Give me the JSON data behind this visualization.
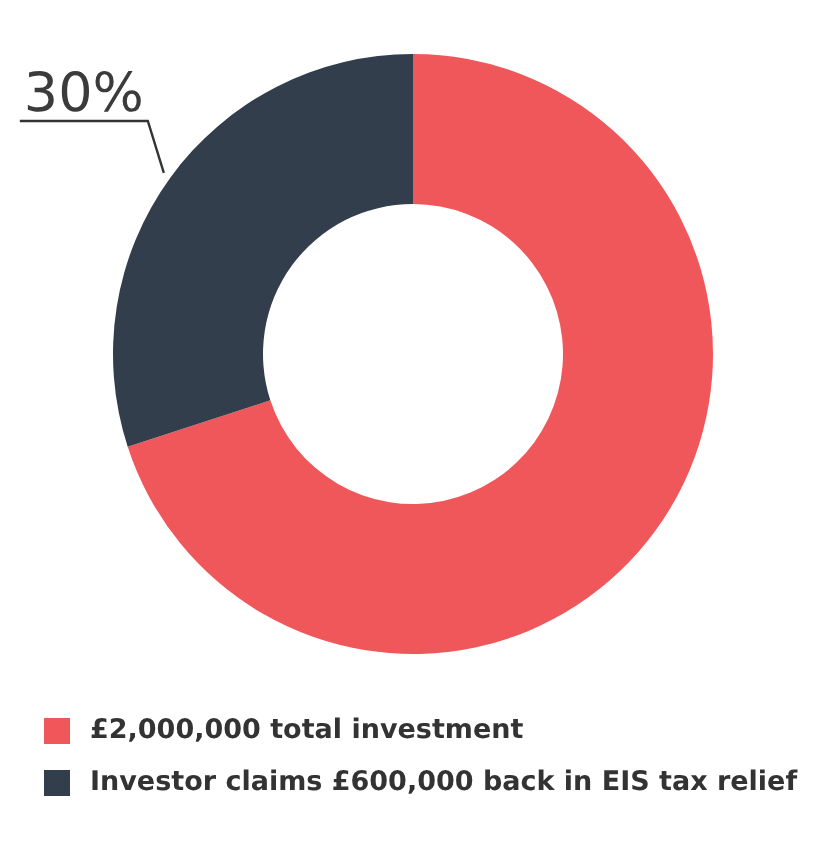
{
  "chart_data": {
    "type": "donut",
    "categories": [
      "£2,000,000 total investment",
      "Investor claims £600,000 back in EIS tax relief"
    ],
    "values": [
      70,
      30
    ],
    "colors": [
      "#f0575a",
      "#323e4c"
    ],
    "value_labels": [
      null,
      "30%"
    ],
    "legend": "bottom left"
  }
}
